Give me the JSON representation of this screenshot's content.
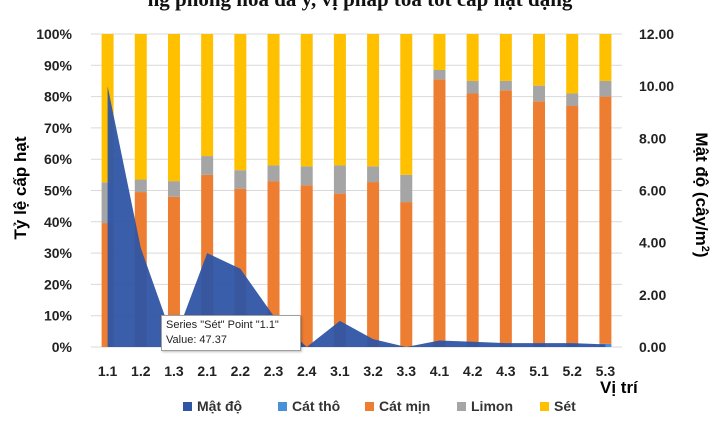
{
  "caption": "ng phong hoá dá y, vị pháp toà tốt cấp hạt dạng",
  "tooltip": {
    "line1": "Series \"Sét\" Point \"1.1\"",
    "line2": "Value: 47.37"
  },
  "chart_data": {
    "type": "bar",
    "stacked": true,
    "categories": [
      "1.1",
      "1.2",
      "1.3",
      "2.1",
      "2.2",
      "2.3",
      "2.4",
      "3.1",
      "3.2",
      "3.3",
      "4.1",
      "4.2",
      "4.3",
      "5.1",
      "5.2",
      "5.3"
    ],
    "xlabel": "Vị trí",
    "ylabel": "Tỷ lệ cấp hạt",
    "ylabel2": "Mật độ (cây/m",
    "ylabel2_sup": "2",
    "ylabel2_close": ")",
    "ylim": [
      0,
      100
    ],
    "y2lim": [
      0,
      12
    ],
    "y_ticks": [
      "0%",
      "10%",
      "20%",
      "30%",
      "40%",
      "50%",
      "60%",
      "70%",
      "80%",
      "90%",
      "100%"
    ],
    "y2_ticks": [
      "0.00",
      "2.00",
      "4.00",
      "6.00",
      "8.00",
      "10.00",
      "12.00"
    ],
    "legend_position": "bottom",
    "series": [
      {
        "name": "Cát thô",
        "color": "#4a90d9",
        "values": [
          0,
          0,
          0,
          0,
          0,
          0,
          0,
          0,
          0,
          0,
          0.5,
          0.5,
          0.5,
          1,
          1,
          1
        ]
      },
      {
        "name": "Cát mịn",
        "color": "#ed7d31",
        "values": [
          39.6,
          49.5,
          48,
          55,
          50.5,
          53,
          51.7,
          49,
          52.7,
          46.3,
          85,
          80.5,
          81.5,
          77.5,
          76,
          79
        ]
      },
      {
        "name": "Limon",
        "color": "#a5a5a5",
        "values": [
          13,
          4,
          5,
          6,
          6,
          5,
          6,
          9,
          5,
          8.7,
          3,
          4,
          3,
          5,
          4,
          5
        ]
      },
      {
        "name": "Sét",
        "color": "#ffc000",
        "values": [
          47.4,
          46.5,
          47,
          39,
          43.5,
          42,
          42.3,
          42,
          42.3,
          45,
          11.5,
          15,
          15,
          16.5,
          19,
          15
        ]
      }
    ],
    "area_series": {
      "name": "Mật độ",
      "color": "#2f55a4",
      "values": [
        10,
        3.8,
        0.2,
        3.6,
        3,
        1.2,
        0,
        1,
        0.3,
        0,
        0.25,
        0.2,
        0.15,
        0.15,
        0.15,
        0.1
      ]
    },
    "legend": [
      "Mật độ",
      "Cát thô",
      "Cát mịn",
      "Limon",
      "Sét"
    ]
  }
}
